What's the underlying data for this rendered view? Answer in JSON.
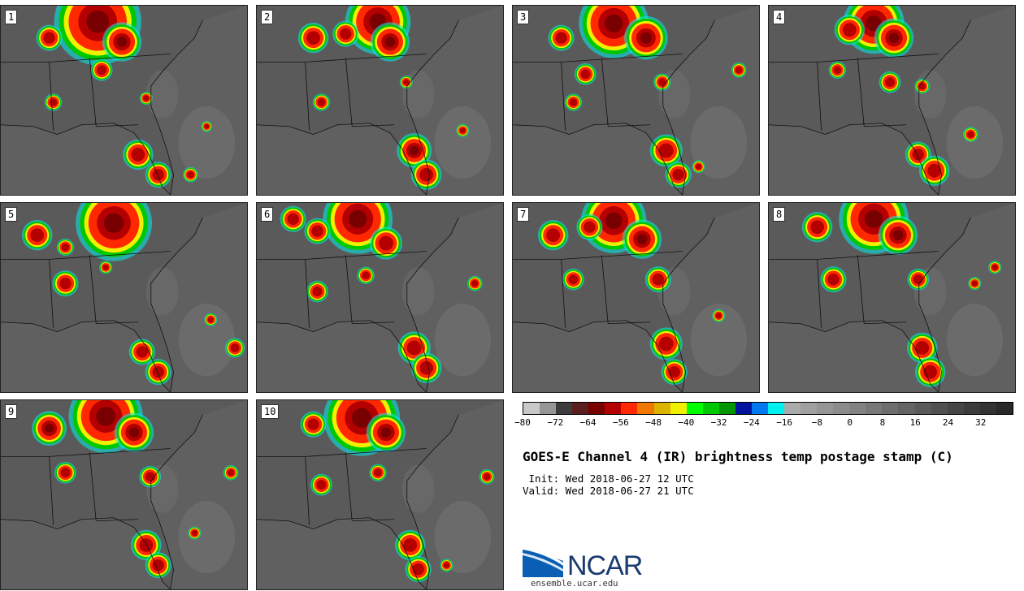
{
  "panels": [
    {
      "label": "1",
      "blobs": [
        [
          120,
          20,
          40
        ],
        [
          60,
          40,
          12
        ],
        [
          150,
          45,
          18
        ],
        [
          125,
          80,
          10
        ],
        [
          65,
          120,
          8
        ],
        [
          170,
          185,
          14
        ],
        [
          195,
          210,
          12
        ],
        [
          235,
          210,
          7
        ],
        [
          180,
          115,
          6
        ],
        [
          255,
          150,
          5
        ]
      ]
    },
    {
      "label": "2",
      "blobs": [
        [
          150,
          20,
          30
        ],
        [
          70,
          40,
          14
        ],
        [
          110,
          35,
          12
        ],
        [
          165,
          45,
          18
        ],
        [
          80,
          120,
          8
        ],
        [
          185,
          95,
          6
        ],
        [
          195,
          180,
          16
        ],
        [
          210,
          210,
          14
        ],
        [
          255,
          155,
          6
        ]
      ]
    },
    {
      "label": "3",
      "blobs": [
        [
          125,
          22,
          32
        ],
        [
          60,
          40,
          12
        ],
        [
          165,
          40,
          20
        ],
        [
          90,
          85,
          10
        ],
        [
          75,
          120,
          8
        ],
        [
          185,
          95,
          8
        ],
        [
          190,
          180,
          15
        ],
        [
          205,
          210,
          12
        ],
        [
          280,
          80,
          7
        ],
        [
          230,
          200,
          6
        ]
      ]
    },
    {
      "label": "4",
      "blobs": [
        [
          130,
          22,
          28
        ],
        [
          100,
          30,
          14
        ],
        [
          155,
          40,
          18
        ],
        [
          85,
          80,
          8
        ],
        [
          150,
          95,
          10
        ],
        [
          190,
          100,
          7
        ],
        [
          185,
          185,
          12
        ],
        [
          205,
          205,
          14
        ],
        [
          250,
          160,
          7
        ]
      ]
    },
    {
      "label": "5",
      "blobs": [
        [
          140,
          25,
          35
        ],
        [
          45,
          40,
          14
        ],
        [
          80,
          55,
          8
        ],
        [
          80,
          100,
          12
        ],
        [
          130,
          80,
          6
        ],
        [
          175,
          185,
          12
        ],
        [
          195,
          210,
          12
        ],
        [
          260,
          145,
          6
        ],
        [
          290,
          180,
          9
        ]
      ]
    },
    {
      "label": "6",
      "blobs": [
        [
          125,
          20,
          32
        ],
        [
          45,
          20,
          12
        ],
        [
          75,
          35,
          12
        ],
        [
          160,
          50,
          15
        ],
        [
          75,
          110,
          10
        ],
        [
          135,
          90,
          8
        ],
        [
          195,
          180,
          15
        ],
        [
          210,
          205,
          14
        ],
        [
          270,
          100,
          7
        ]
      ]
    },
    {
      "label": "7",
      "blobs": [
        [
          125,
          22,
          30
        ],
        [
          50,
          40,
          14
        ],
        [
          95,
          30,
          12
        ],
        [
          160,
          45,
          18
        ],
        [
          75,
          95,
          10
        ],
        [
          180,
          95,
          12
        ],
        [
          190,
          175,
          15
        ],
        [
          200,
          210,
          12
        ],
        [
          255,
          140,
          6
        ]
      ]
    },
    {
      "label": "8",
      "blobs": [
        [
          130,
          20,
          32
        ],
        [
          60,
          30,
          14
        ],
        [
          160,
          40,
          18
        ],
        [
          80,
          95,
          12
        ],
        [
          185,
          95,
          10
        ],
        [
          190,
          180,
          14
        ],
        [
          200,
          210,
          14
        ],
        [
          255,
          100,
          6
        ],
        [
          280,
          80,
          6
        ]
      ]
    },
    {
      "label": "9",
      "blobs": [
        [
          130,
          20,
          34
        ],
        [
          60,
          35,
          16
        ],
        [
          165,
          40,
          18
        ],
        [
          80,
          90,
          10
        ],
        [
          185,
          95,
          10
        ],
        [
          180,
          180,
          14
        ],
        [
          195,
          205,
          12
        ],
        [
          240,
          165,
          6
        ],
        [
          285,
          90,
          7
        ]
      ]
    },
    {
      "label": "10",
      "blobs": [
        [
          130,
          22,
          35
        ],
        [
          70,
          30,
          12
        ],
        [
          160,
          40,
          18
        ],
        [
          80,
          105,
          10
        ],
        [
          150,
          90,
          8
        ],
        [
          190,
          180,
          14
        ],
        [
          200,
          210,
          12
        ],
        [
          235,
          205,
          6
        ],
        [
          285,
          95,
          7
        ]
      ]
    }
  ],
  "colorbar": {
    "colors": [
      "#c8c8c8",
      "#969696",
      "#3c3c3c",
      "#5a1e1e",
      "#780000",
      "#b40000",
      "#ff2800",
      "#f07800",
      "#dcb400",
      "#f0f000",
      "#00ff00",
      "#00c800",
      "#009600",
      "#0014a0",
      "#0078f0",
      "#00f0f0",
      "#aaaaaa",
      "#a0a0a0",
      "#969696",
      "#8c8c8c",
      "#828282",
      "#787878",
      "#6e6e6e",
      "#646464",
      "#5a5a5a",
      "#505050",
      "#464646",
      "#3c3c3c",
      "#323232",
      "#282828"
    ],
    "ticks": [
      "−80",
      "−72",
      "−64",
      "−56",
      "−48",
      "−40",
      "−32",
      "−24",
      "−16",
      "−8",
      "0",
      "8",
      "16",
      "24",
      "32"
    ],
    "min": -80,
    "max": 40
  },
  "title": "GOES-E Channel 4 (IR) brightness temp postage stamp (C)",
  "init": " Init: Wed 2018-06-27 12 UTC",
  "valid": "Valid: Wed 2018-06-27 21 UTC",
  "logo": {
    "text": "NCAR",
    "url": "ensemble.ucar.edu"
  }
}
